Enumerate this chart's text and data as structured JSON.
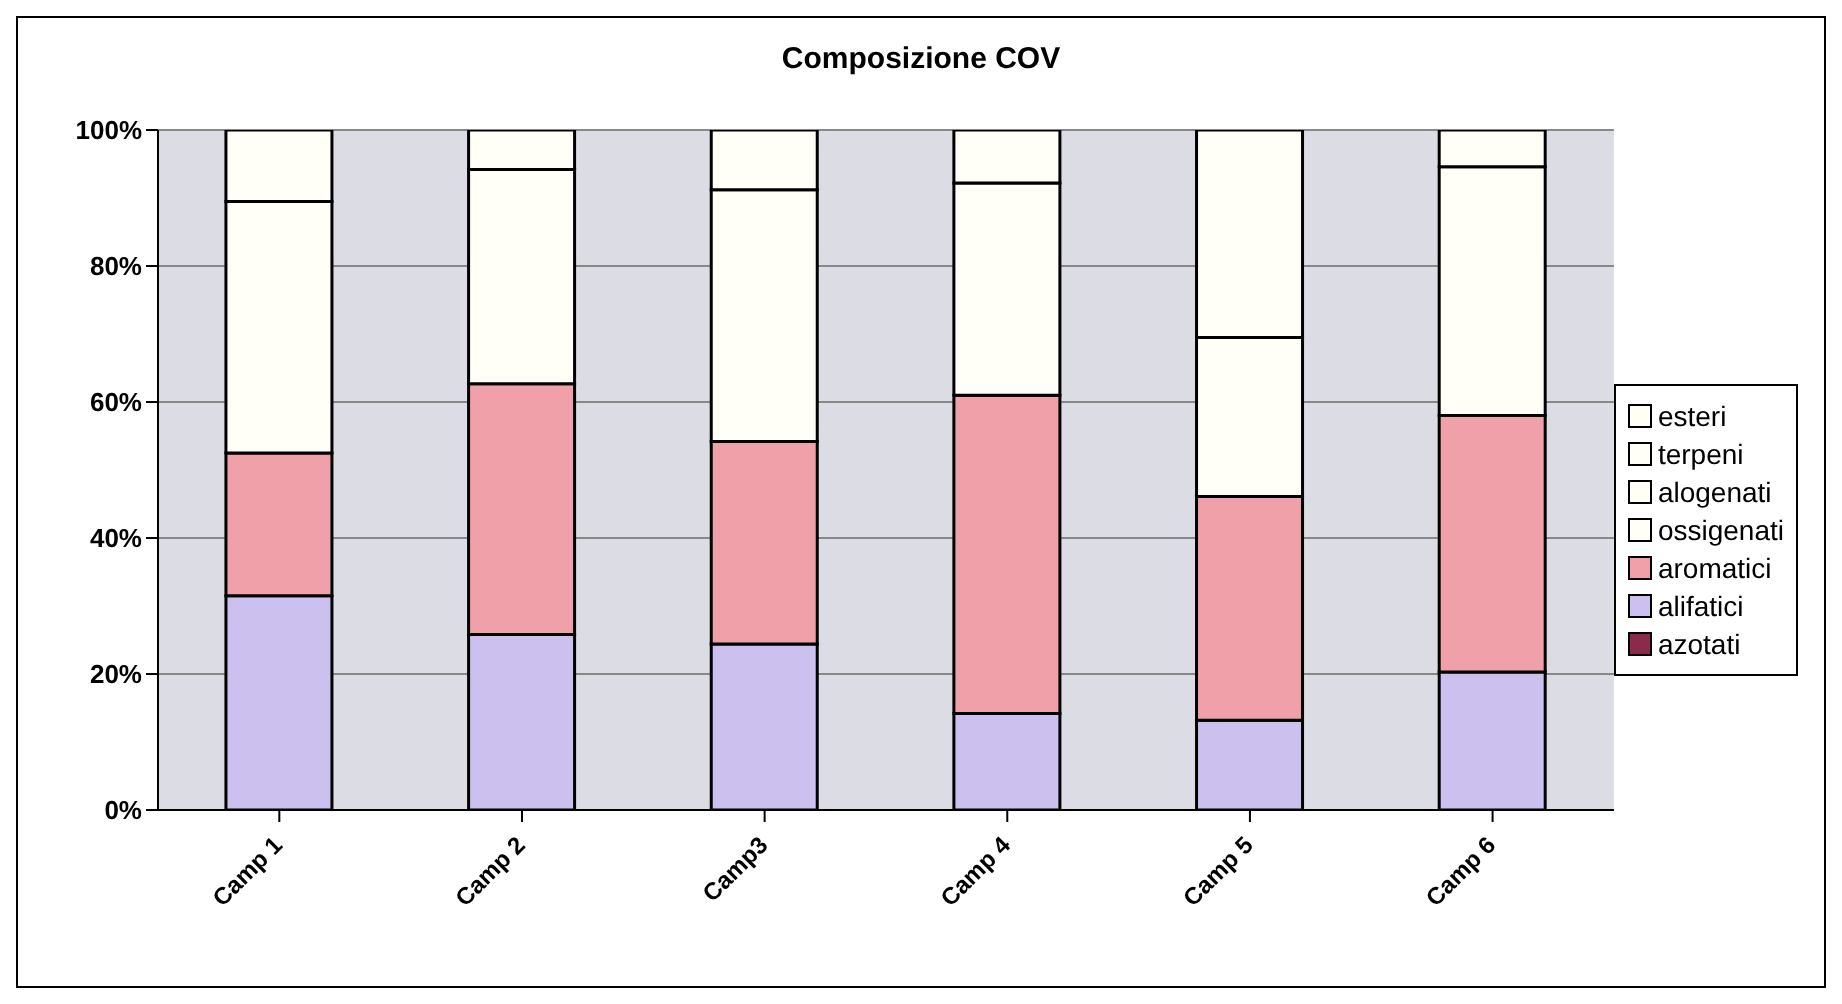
{
  "chart_data": {
    "type": "bar",
    "title": "Composizione COV",
    "stacked": true,
    "categories": [
      "Camp 1",
      "Camp 2",
      "Camp3",
      "Camp 4",
      "Camp 5",
      "Camp 6"
    ],
    "series": [
      {
        "name": "azotati",
        "color": "#8b2a4a",
        "values": [
          0,
          0,
          0,
          0,
          0,
          0
        ]
      },
      {
        "name": "alifatici",
        "color": "#ccc0ee",
        "values": [
          31.5,
          25.8,
          24.4,
          14.2,
          13.2,
          20.3
        ]
      },
      {
        "name": "aromatici",
        "color": "#f0a0a8",
        "values": [
          21,
          36.9,
          29.8,
          46.8,
          32.9,
          37.7
        ]
      },
      {
        "name": "ossigenati",
        "color": "#fffff8",
        "values": [
          37,
          31.5,
          37,
          31.2,
          23.4,
          36.6
        ]
      },
      {
        "name": "alogenati",
        "color": "#fffff8",
        "values": [
          0,
          0,
          0,
          0,
          0,
          0
        ]
      },
      {
        "name": "terpeni",
        "color": "#fffff8",
        "values": [
          0,
          0,
          0,
          0,
          0,
          0
        ]
      },
      {
        "name": "esteri",
        "color": "#fffff8",
        "values": [
          10.5,
          5.8,
          8.8,
          7.8,
          30.5,
          5.4
        ]
      }
    ],
    "ylim": [
      0,
      100
    ],
    "yticks": [
      {
        "value": 0,
        "label": "0%"
      },
      {
        "value": 20,
        "label": "20%"
      },
      {
        "value": 40,
        "label": "40%"
      },
      {
        "value": 60,
        "label": "60%"
      },
      {
        "value": 80,
        "label": "80%"
      },
      {
        "value": 100,
        "label": "100%"
      }
    ],
    "grid": "y",
    "legend": "right"
  }
}
